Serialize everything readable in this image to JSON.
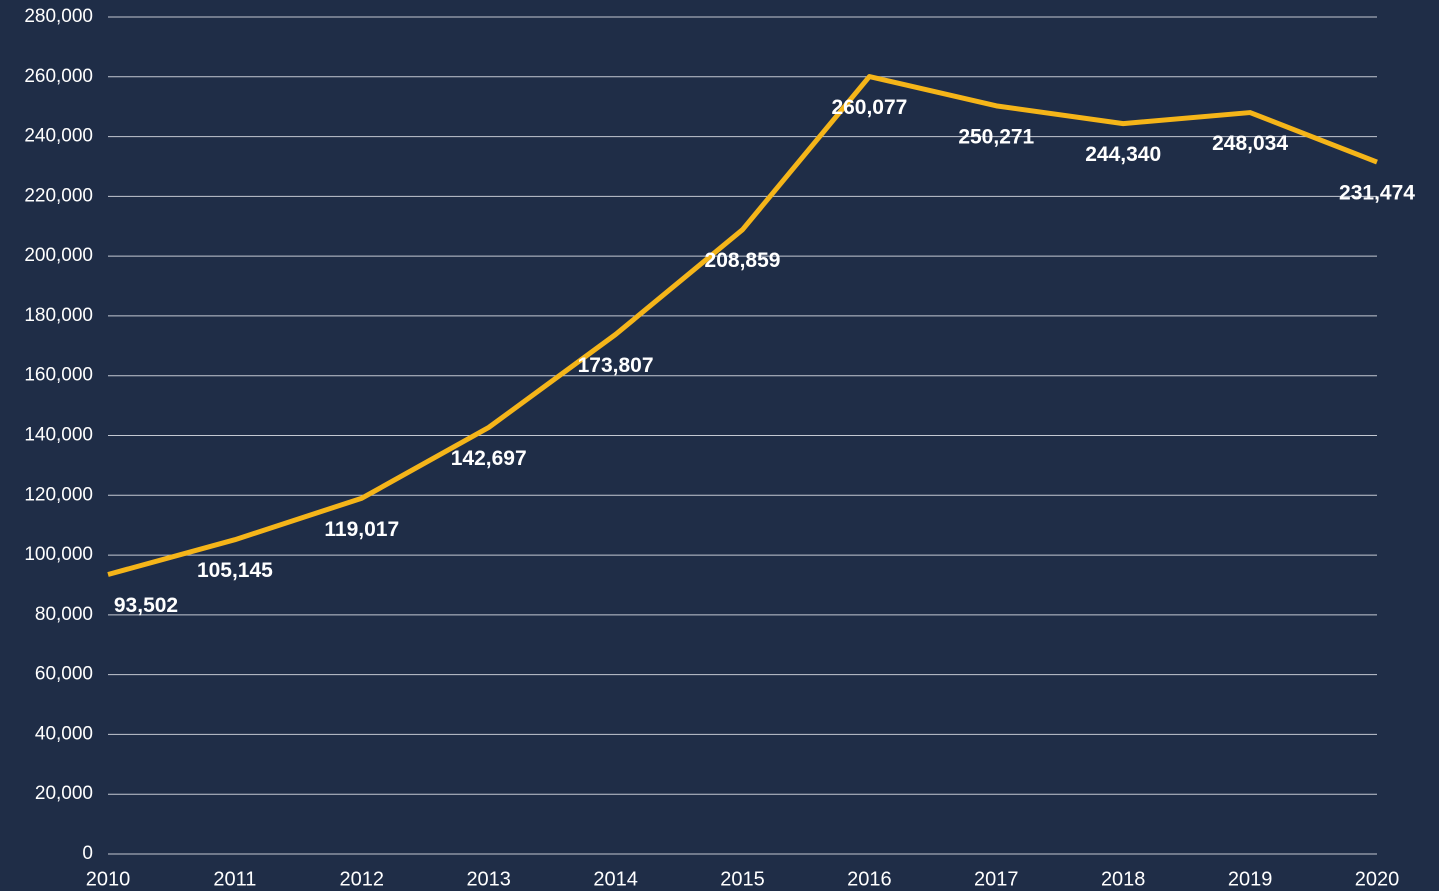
{
  "chart_data": {
    "type": "line",
    "categories": [
      "2010",
      "2011",
      "2012",
      "2013",
      "2014",
      "2015",
      "2016",
      "2017",
      "2018",
      "2019",
      "2020"
    ],
    "values": [
      93502,
      105145,
      119017,
      142697,
      173807,
      208859,
      260077,
      250271,
      244340,
      248034,
      231474
    ],
    "value_labels": [
      "93,502",
      "105,145",
      "119,017",
      "142,697",
      "173,807",
      "208,859",
      "260,077",
      "250,271",
      "244,340",
      "248,034",
      "231,474"
    ],
    "color": "#f5b519",
    "ylim": [
      0,
      280000
    ],
    "yticks": [
      0,
      {
        "value": 20000,
        "label": "20,000"
      },
      {
        "value": 40000,
        "label": "40,000"
      },
      {
        "value": 60000,
        "label": "60,000"
      },
      {
        "value": 80000,
        "label": "80,000"
      },
      {
        "value": 100000,
        "label": "100,000"
      },
      {
        "value": 120000,
        "label": "120,000"
      },
      {
        "value": 140000,
        "label": "140,000"
      },
      {
        "value": 160000,
        "label": "160,000"
      },
      {
        "value": 180000,
        "label": "180,000"
      },
      {
        "value": 200000,
        "label": "200,000"
      },
      {
        "value": 220000,
        "label": "220,000"
      },
      {
        "value": 240000,
        "label": "240,000"
      },
      {
        "value": 260000,
        "label": "260,000"
      },
      {
        "value": 280000,
        "label": "280,000"
      }
    ],
    "grid": true
  }
}
